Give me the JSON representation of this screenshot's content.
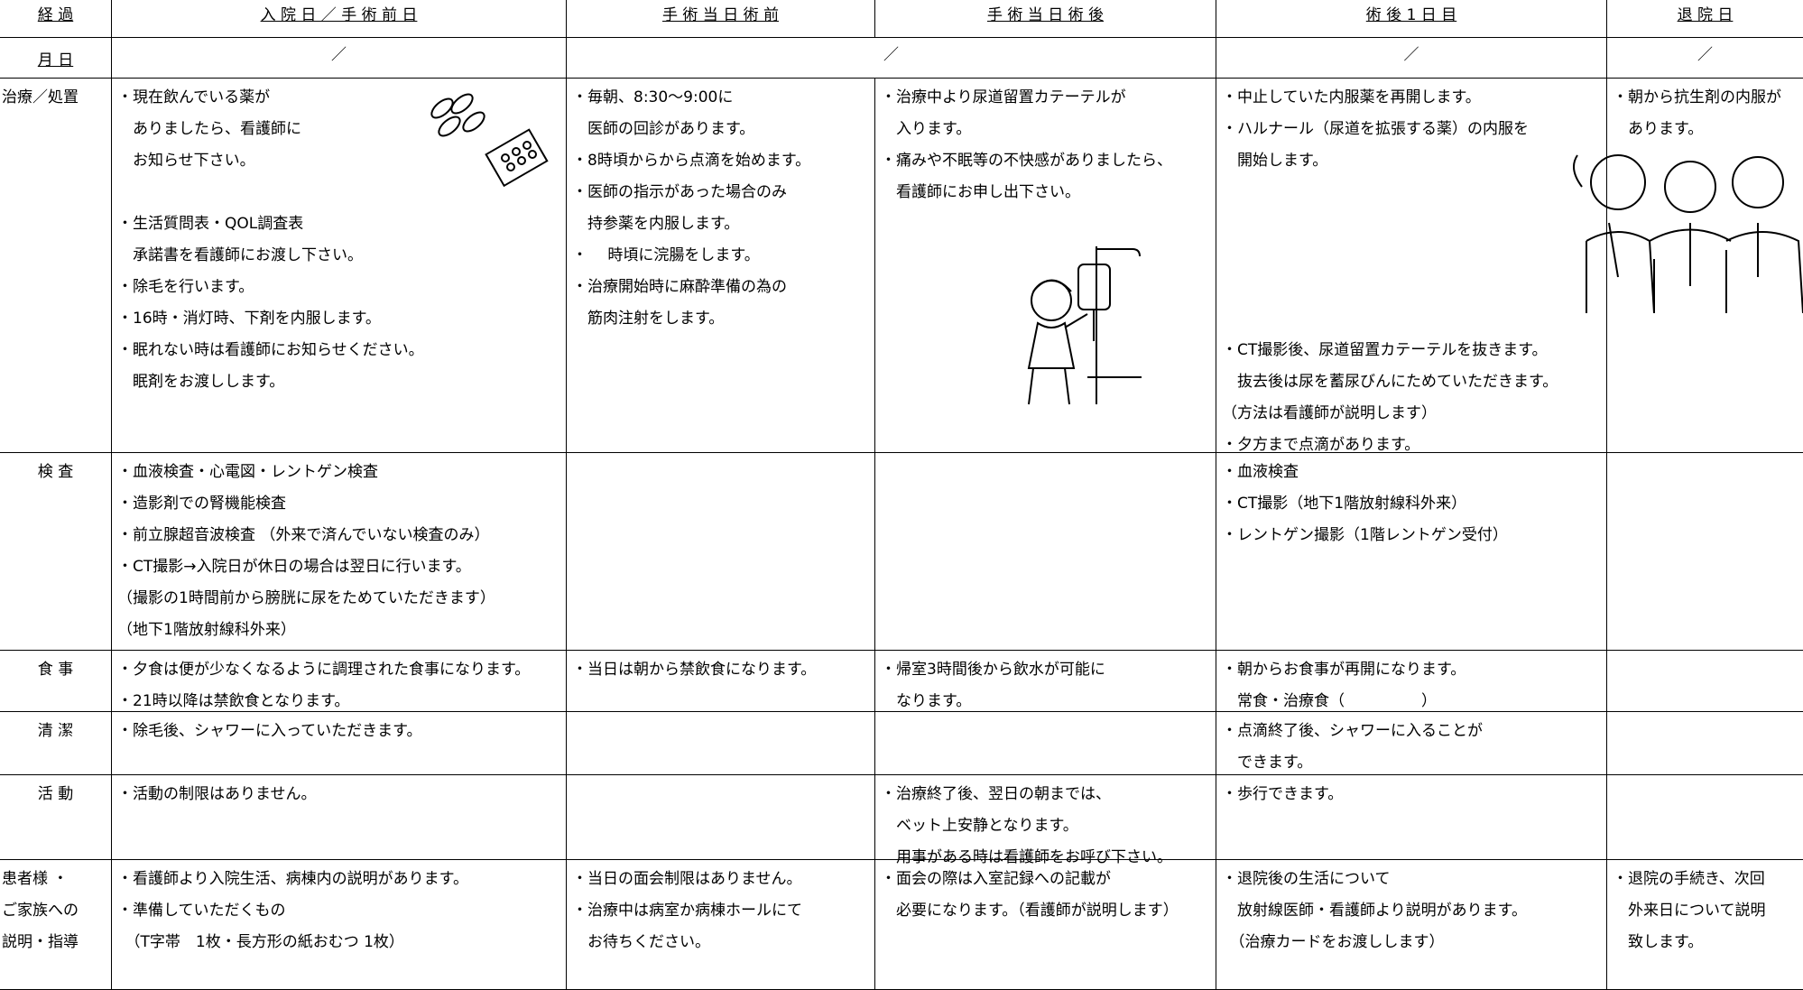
{
  "header": {
    "label": "経 過",
    "cells": [
      "入 院 日 ／ 手 術 前 日",
      "手 術 当 日 術 前",
      "手 術 当 日 術 後",
      "術 後 1 日 目",
      "退 院 日"
    ]
  },
  "date_row": {
    "label": "月 日",
    "cells": [
      "／",
      "／",
      "／",
      "／"
    ]
  },
  "rows": [
    {
      "label": [
        "治療／処置"
      ],
      "cells": [
        [
          [
            "・現在飲んでいる薬が",
            "　ありましたら、看護師に",
            "　お知らせ下さい。"
          ],
          [
            "・生活質問表・QOL調査表",
            "　承諾書を看護師にお渡し下さい。",
            "・除毛を行います。",
            "・16時・消灯時、下剤を内服します。",
            "・眠れない時は看護師にお知らせください。",
            "　眠剤をお渡しします。"
          ]
        ],
        [
          [
            "・毎朝、8:30～9:00に",
            "　医師の回診があります。",
            "・8時頃からから点滴を始めます。",
            "・医師の指示があった場合のみ",
            "　持参薬を内服します。",
            "・　 時頃に浣腸をします。",
            "・治療開始時に麻酔準備の為の",
            "　筋肉注射をします。"
          ]
        ],
        [
          [
            "・治療中より尿道留置カテーテルが",
            "　入ります。",
            "・痛みや不眠等の不快感がありましたら、",
            "　看護師にお申し出下さい。"
          ]
        ],
        [
          [
            "・中止していた内服薬を再開します。",
            "・ハルナール（尿道を拡張する薬）の内服を",
            "　開始します。"
          ],
          [
            "・CT撮影後、尿道留置カテーテルを抜きます。",
            "　抜去後は尿を蓄尿びんにためていただきます。",
            "（方法は看護師が説明します）",
            "・夕方まで点滴があります。"
          ]
        ],
        [
          [
            "・朝から抗生剤の内服が",
            "　あります。"
          ]
        ]
      ]
    },
    {
      "label": [
        "検 査"
      ],
      "cells": [
        [
          [
            "・血液検査・心電図・レントゲン検査",
            "・造影剤での腎機能検査",
            "・前立腺超音波検査 （外来で済んでいない検査のみ）",
            "・CT撮影→入院日が休日の場合は翌日に行います。",
            "（撮影の1時間前から膀胱に尿をためていただきます）",
            "（地下1階放射線科外来）"
          ]
        ],
        [],
        [],
        [
          [
            "・血液検査",
            "・CT撮影（地下1階放射線科外来）",
            "・レントゲン撮影（1階レントゲン受付）"
          ]
        ],
        []
      ]
    },
    {
      "label": [
        "食 事"
      ],
      "cells": [
        [
          [
            "・夕食は便が少なくなるように調理された食事になります。",
            "・21時以降は禁飲食となります。"
          ]
        ],
        [
          [
            "・当日は朝から禁飲食になります。"
          ]
        ],
        [
          [
            "・帰室3時間後から飲水が可能に",
            "　なります。"
          ]
        ],
        [
          [
            "・朝からお食事が再開になります。",
            "　常食・治療食（　　　　　）"
          ]
        ],
        []
      ]
    },
    {
      "label": [
        "清 潔"
      ],
      "cells": [
        [
          [
            "・除毛後、シャワーに入っていただきます。"
          ]
        ],
        [],
        [],
        [
          [
            "・点滴終了後、シャワーに入ることが",
            "　できます。"
          ]
        ],
        []
      ]
    },
    {
      "label": [
        "活 動"
      ],
      "cells": [
        [
          [
            "・活動の制限はありません。"
          ]
        ],
        [],
        [
          [
            "・治療終了後、翌日の朝までは、",
            "　ベット上安静となります。",
            "　用事がある時は看護師をお呼び下さい。"
          ]
        ],
        [
          [
            "・歩行できます。"
          ]
        ],
        []
      ]
    },
    {
      "label": [
        "患者様 ・",
        "ご家族への",
        "説明・指導"
      ],
      "cells": [
        [
          [
            "・看護師より入院生活、病棟内の説明があります。",
            "・準備していただくもの",
            "　（T字帯　1枚・長方形の紙おむつ 1枚）"
          ]
        ],
        [
          [
            "・当日の面会制限はありません。",
            "・治療中は病室か病棟ホールにて",
            "　お待ちください。"
          ]
        ],
        [
          [
            "・面会の際は入室記録への記載が",
            "　必要になります。（看護師が説明します）"
          ]
        ],
        [
          [
            "・退院後の生活について",
            "　放射線医師・看護師より説明があります。",
            "　（治療カードをお渡しします）"
          ]
        ],
        [
          [
            "・退院の手続き、次回",
            "　外来日について説明",
            "　致します。"
          ]
        ]
      ]
    }
  ]
}
